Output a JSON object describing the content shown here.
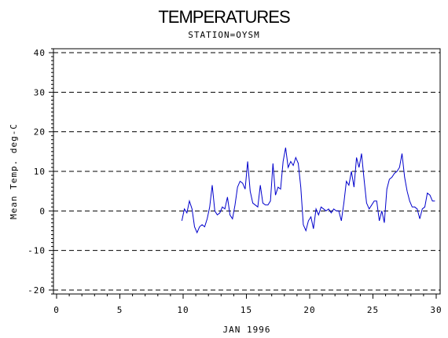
{
  "chart_data": {
    "type": "line",
    "title": "TEMPERATURES",
    "subtitle": "STATION=OYSM",
    "xlabel": "JAN 1996",
    "ylabel": "Mean Temp. deg-C",
    "xlim": [
      0,
      30
    ],
    "ylim": [
      -21,
      41
    ],
    "x_ticks": [
      "0",
      "5",
      "10",
      "15",
      "20",
      "25",
      "30"
    ],
    "y_ticks": [
      "-20",
      "-10",
      "0",
      "10",
      "20",
      "30",
      "40"
    ],
    "grid": {
      "horizontal_dashed_at": [
        -20,
        -10,
        0,
        10,
        20,
        30,
        40
      ]
    },
    "line_color": "#0000cc",
    "series": [
      {
        "x": [
          9.9,
          10.1,
          10.3,
          10.5,
          10.7,
          10.9,
          11.1,
          11.3,
          11.5,
          11.7,
          11.9,
          12.1,
          12.3,
          12.5,
          12.7,
          12.9,
          13.1,
          13.3,
          13.5,
          13.7,
          13.9,
          14.1,
          14.3,
          14.5,
          14.7,
          14.9,
          15.1,
          15.3,
          15.5,
          15.7,
          15.9,
          16.1,
          16.3,
          16.5,
          16.7,
          16.9,
          17.1,
          17.3,
          17.5,
          17.7,
          17.9,
          18.1,
          18.3,
          18.5,
          18.7,
          18.9,
          19.1,
          19.3,
          19.5,
          19.7,
          19.9,
          20.1,
          20.3,
          20.5,
          20.7,
          20.9,
          21.1,
          21.3,
          21.5,
          21.7,
          21.9,
          22.1,
          22.3,
          22.5,
          22.7,
          22.9,
          23.1,
          23.3,
          23.5,
          23.7,
          23.9,
          24.1,
          24.3,
          24.5,
          24.7,
          24.9,
          25.1,
          25.3,
          25.5,
          25.7,
          25.9,
          26.1,
          26.3,
          26.5,
          26.7,
          26.9,
          27.1,
          27.3,
          27.5,
          27.7,
          27.9,
          28.1,
          28.3,
          28.5,
          28.7,
          28.9,
          29.1,
          29.3,
          29.5,
          29.7,
          29.9
        ],
        "values": [
          -2.5,
          0.5,
          -0.5,
          2.5,
          0.5,
          -4.0,
          -5.5,
          -4.0,
          -3.5,
          -4.0,
          -2.0,
          1.0,
          6.5,
          0.0,
          -1.0,
          -0.5,
          1.0,
          0.5,
          3.5,
          -1.0,
          -2.0,
          1.5,
          6.0,
          7.5,
          7.0,
          5.5,
          12.5,
          5.0,
          2.0,
          1.5,
          1.0,
          6.5,
          2.0,
          1.5,
          1.5,
          2.5,
          12.0,
          4.0,
          6.0,
          5.5,
          12.5,
          16.0,
          11.0,
          12.5,
          11.5,
          13.5,
          12.0,
          6.0,
          -3.5,
          -5.0,
          -2.5,
          -1.5,
          -4.5,
          0.5,
          -1.0,
          1.0,
          0.5,
          0.0,
          0.5,
          -0.5,
          0.5,
          0.0,
          0.0,
          -2.5,
          2.0,
          7.5,
          6.5,
          10.0,
          6.0,
          13.5,
          11.0,
          14.5,
          8.0,
          2.0,
          0.5,
          1.5,
          2.5,
          2.5,
          -2.5,
          0.0,
          -3.0,
          5.5,
          8.0,
          8.5,
          9.5,
          10.0,
          11.0,
          14.5,
          8.5,
          5.0,
          2.5,
          1.0,
          1.0,
          0.5,
          -2.0,
          0.5,
          1.0,
          4.5,
          4.0,
          2.5,
          2.5
        ]
      }
    ]
  }
}
